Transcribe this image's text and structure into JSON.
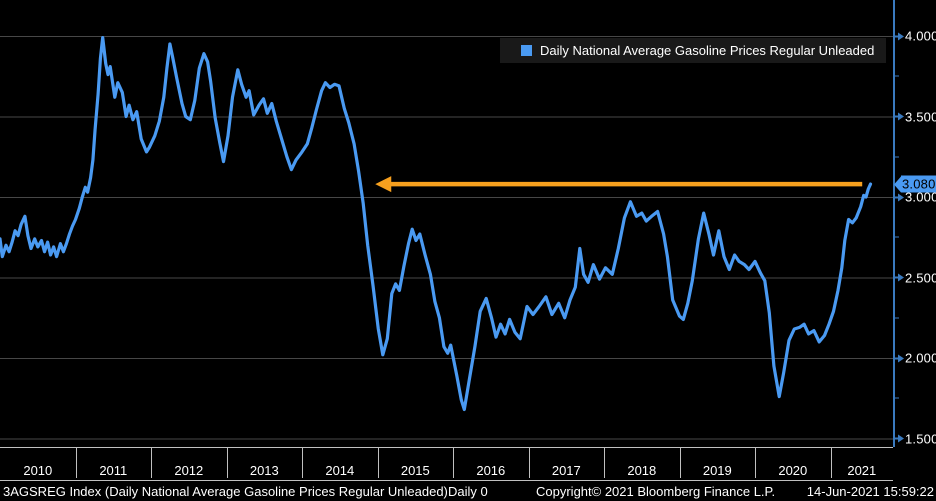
{
  "colors": {
    "background": "#000000",
    "line": "#4a9af2",
    "grid": "#474747",
    "axis": "#3a7abf",
    "arrow": "#f7a01e",
    "badge_text": "#000000",
    "text": "#ffffff",
    "band": "#c0c0c0",
    "legend_bg": "#191919"
  },
  "status_bar": {
    "ticker_text": "3AGSREG Index (Daily National Average Gasoline Prices Regular Unleaded)",
    "frequency": "Daily 0",
    "copyright": "Copyright© 2021 Bloomberg Finance L.P.",
    "timestamp": "14-Jun-2021 15:59:22"
  },
  "annotation_arrow": {
    "value": 3.08,
    "tip_year": 2014.97,
    "end_year": 2021.42,
    "direction": "left",
    "color": "#f7a01e"
  },
  "chart_data": {
    "type": "line",
    "title": "Daily National Average Gasoline Prices Regular Unleaded",
    "xlabel": "",
    "ylabel": "",
    "grid": "horizontal",
    "legend_position": "top-right",
    "background": "#000000",
    "last_value": 3.08,
    "last_value_label": "3.080",
    "x_axis": {
      "tick_labels": [
        "2010",
        "2011",
        "2012",
        "2013",
        "2014",
        "2015",
        "2016",
        "2017",
        "2018",
        "2019",
        "2020",
        "2021"
      ],
      "range": [
        2010.0,
        2021.83
      ]
    },
    "y_axis": {
      "tick_labels": [
        "4.000",
        "3.500",
        "3.000",
        "2.500",
        "2.000",
        "1.500"
      ],
      "tick_values": [
        4.0,
        3.5,
        3.0,
        2.5,
        2.0,
        1.5
      ],
      "minor_tick_values": [
        3.75,
        3.25,
        2.75,
        2.25,
        1.75
      ],
      "visible_range": [
        1.45,
        4.22
      ]
    },
    "series": [
      {
        "name": "Daily National Average Gasoline Prices Regular Unleaded",
        "color": "#4a9af2",
        "points": [
          [
            2010.0,
            2.74
          ],
          [
            2010.03,
            2.63
          ],
          [
            2010.08,
            2.7
          ],
          [
            2010.12,
            2.66
          ],
          [
            2010.16,
            2.72
          ],
          [
            2010.2,
            2.79
          ],
          [
            2010.24,
            2.76
          ],
          [
            2010.28,
            2.83
          ],
          [
            2010.33,
            2.88
          ],
          [
            2010.37,
            2.76
          ],
          [
            2010.41,
            2.68
          ],
          [
            2010.46,
            2.74
          ],
          [
            2010.5,
            2.69
          ],
          [
            2010.55,
            2.73
          ],
          [
            2010.59,
            2.66
          ],
          [
            2010.63,
            2.72
          ],
          [
            2010.67,
            2.64
          ],
          [
            2010.71,
            2.69
          ],
          [
            2010.75,
            2.63
          ],
          [
            2010.8,
            2.71
          ],
          [
            2010.84,
            2.66
          ],
          [
            2010.88,
            2.71
          ],
          [
            2010.92,
            2.77
          ],
          [
            2010.96,
            2.82
          ],
          [
            2011.0,
            2.86
          ],
          [
            2011.05,
            2.93
          ],
          [
            2011.09,
            3.0
          ],
          [
            2011.13,
            3.06
          ],
          [
            2011.16,
            3.03
          ],
          [
            2011.2,
            3.12
          ],
          [
            2011.23,
            3.23
          ],
          [
            2011.26,
            3.42
          ],
          [
            2011.3,
            3.64
          ],
          [
            2011.33,
            3.86
          ],
          [
            2011.36,
            3.99
          ],
          [
            2011.4,
            3.83
          ],
          [
            2011.43,
            3.76
          ],
          [
            2011.46,
            3.81
          ],
          [
            2011.52,
            3.62
          ],
          [
            2011.56,
            3.71
          ],
          [
            2011.62,
            3.65
          ],
          [
            2011.67,
            3.5
          ],
          [
            2011.71,
            3.57
          ],
          [
            2011.76,
            3.48
          ],
          [
            2011.81,
            3.53
          ],
          [
            2011.87,
            3.36
          ],
          [
            2011.94,
            3.28
          ],
          [
            2011.98,
            3.31
          ],
          [
            2012.05,
            3.38
          ],
          [
            2012.11,
            3.47
          ],
          [
            2012.17,
            3.62
          ],
          [
            2012.21,
            3.8
          ],
          [
            2012.25,
            3.95
          ],
          [
            2012.29,
            3.86
          ],
          [
            2012.34,
            3.74
          ],
          [
            2012.41,
            3.58
          ],
          [
            2012.46,
            3.5
          ],
          [
            2012.52,
            3.48
          ],
          [
            2012.58,
            3.6
          ],
          [
            2012.64,
            3.8
          ],
          [
            2012.7,
            3.89
          ],
          [
            2012.75,
            3.84
          ],
          [
            2012.79,
            3.72
          ],
          [
            2012.85,
            3.49
          ],
          [
            2012.91,
            3.34
          ],
          [
            2012.96,
            3.22
          ],
          [
            2013.02,
            3.38
          ],
          [
            2013.08,
            3.62
          ],
          [
            2013.15,
            3.79
          ],
          [
            2013.2,
            3.7
          ],
          [
            2013.26,
            3.62
          ],
          [
            2013.3,
            3.66
          ],
          [
            2013.36,
            3.51
          ],
          [
            2013.43,
            3.57
          ],
          [
            2013.49,
            3.61
          ],
          [
            2013.54,
            3.52
          ],
          [
            2013.6,
            3.58
          ],
          [
            2013.66,
            3.47
          ],
          [
            2013.73,
            3.36
          ],
          [
            2013.8,
            3.25
          ],
          [
            2013.86,
            3.17
          ],
          [
            2013.92,
            3.23
          ],
          [
            2014.0,
            3.28
          ],
          [
            2014.07,
            3.33
          ],
          [
            2014.13,
            3.43
          ],
          [
            2014.19,
            3.54
          ],
          [
            2014.26,
            3.66
          ],
          [
            2014.31,
            3.71
          ],
          [
            2014.37,
            3.68
          ],
          [
            2014.43,
            3.7
          ],
          [
            2014.49,
            3.69
          ],
          [
            2014.56,
            3.55
          ],
          [
            2014.62,
            3.46
          ],
          [
            2014.69,
            3.33
          ],
          [
            2014.75,
            3.16
          ],
          [
            2014.81,
            2.96
          ],
          [
            2014.87,
            2.7
          ],
          [
            2014.94,
            2.45
          ],
          [
            2015.01,
            2.18
          ],
          [
            2015.07,
            2.02
          ],
          [
            2015.13,
            2.12
          ],
          [
            2015.19,
            2.4
          ],
          [
            2015.24,
            2.46
          ],
          [
            2015.29,
            2.42
          ],
          [
            2015.35,
            2.57
          ],
          [
            2015.41,
            2.71
          ],
          [
            2015.46,
            2.8
          ],
          [
            2015.51,
            2.73
          ],
          [
            2015.56,
            2.77
          ],
          [
            2015.63,
            2.64
          ],
          [
            2015.7,
            2.52
          ],
          [
            2015.76,
            2.35
          ],
          [
            2015.82,
            2.25
          ],
          [
            2015.88,
            2.07
          ],
          [
            2015.93,
            2.03
          ],
          [
            2015.97,
            2.08
          ],
          [
            2016.05,
            1.89
          ],
          [
            2016.11,
            1.74
          ],
          [
            2016.15,
            1.68
          ],
          [
            2016.21,
            1.85
          ],
          [
            2016.29,
            2.07
          ],
          [
            2016.36,
            2.29
          ],
          [
            2016.44,
            2.37
          ],
          [
            2016.51,
            2.25
          ],
          [
            2016.57,
            2.13
          ],
          [
            2016.63,
            2.21
          ],
          [
            2016.69,
            2.15
          ],
          [
            2016.75,
            2.24
          ],
          [
            2016.82,
            2.16
          ],
          [
            2016.89,
            2.12
          ],
          [
            2016.98,
            2.32
          ],
          [
            2017.06,
            2.27
          ],
          [
            2017.14,
            2.32
          ],
          [
            2017.23,
            2.38
          ],
          [
            2017.31,
            2.27
          ],
          [
            2017.4,
            2.34
          ],
          [
            2017.48,
            2.25
          ],
          [
            2017.55,
            2.36
          ],
          [
            2017.62,
            2.44
          ],
          [
            2017.68,
            2.68
          ],
          [
            2017.73,
            2.52
          ],
          [
            2017.79,
            2.47
          ],
          [
            2017.86,
            2.58
          ],
          [
            2017.94,
            2.49
          ],
          [
            2018.02,
            2.56
          ],
          [
            2018.11,
            2.52
          ],
          [
            2018.19,
            2.68
          ],
          [
            2018.27,
            2.87
          ],
          [
            2018.35,
            2.97
          ],
          [
            2018.43,
            2.88
          ],
          [
            2018.5,
            2.9
          ],
          [
            2018.56,
            2.85
          ],
          [
            2018.63,
            2.88
          ],
          [
            2018.71,
            2.91
          ],
          [
            2018.79,
            2.77
          ],
          [
            2018.84,
            2.63
          ],
          [
            2018.91,
            2.36
          ],
          [
            2019.0,
            2.26
          ],
          [
            2019.05,
            2.24
          ],
          [
            2019.11,
            2.34
          ],
          [
            2019.17,
            2.48
          ],
          [
            2019.25,
            2.74
          ],
          [
            2019.32,
            2.9
          ],
          [
            2019.39,
            2.77
          ],
          [
            2019.45,
            2.64
          ],
          [
            2019.52,
            2.79
          ],
          [
            2019.59,
            2.63
          ],
          [
            2019.66,
            2.55
          ],
          [
            2019.73,
            2.64
          ],
          [
            2019.79,
            2.6
          ],
          [
            2019.86,
            2.58
          ],
          [
            2019.92,
            2.55
          ],
          [
            2020.0,
            2.6
          ],
          [
            2020.07,
            2.53
          ],
          [
            2020.13,
            2.48
          ],
          [
            2020.19,
            2.28
          ],
          [
            2020.25,
            1.95
          ],
          [
            2020.32,
            1.76
          ],
          [
            2020.38,
            1.91
          ],
          [
            2020.45,
            2.11
          ],
          [
            2020.52,
            2.18
          ],
          [
            2020.59,
            2.19
          ],
          [
            2020.65,
            2.21
          ],
          [
            2020.71,
            2.15
          ],
          [
            2020.78,
            2.17
          ],
          [
            2020.85,
            2.1
          ],
          [
            2020.92,
            2.14
          ],
          [
            2020.98,
            2.21
          ],
          [
            2021.04,
            2.29
          ],
          [
            2021.1,
            2.42
          ],
          [
            2021.15,
            2.56
          ],
          [
            2021.19,
            2.73
          ],
          [
            2021.24,
            2.86
          ],
          [
            2021.29,
            2.84
          ],
          [
            2021.34,
            2.87
          ],
          [
            2021.4,
            2.94
          ],
          [
            2021.44,
            3.01
          ],
          [
            2021.47,
            3.0
          ],
          [
            2021.5,
            3.05
          ],
          [
            2021.53,
            3.08
          ]
        ]
      }
    ]
  }
}
